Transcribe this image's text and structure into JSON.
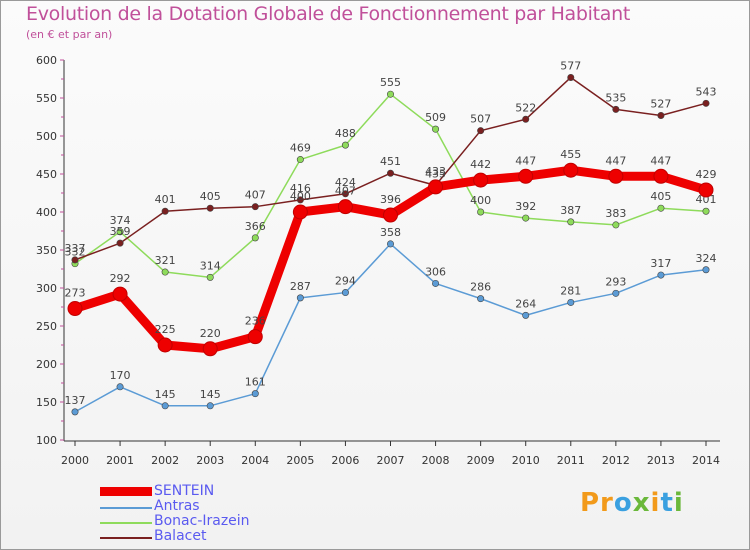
{
  "header": {
    "title": "Evolution de la Dotation Globale de Fonctionnement par Habitant",
    "subtitle": "(en € et par an)"
  },
  "logo": {
    "text": "Proxiti",
    "colors": [
      "#f29a1a",
      "#3aa0e0",
      "#6ab83a"
    ]
  },
  "chart_data": {
    "type": "line",
    "title": "Evolution de la Dotation Globale de Fonctionnement par Habitant",
    "subtitle": "(en € et par an)",
    "xlabel": "",
    "ylabel": "",
    "x": [
      "2000",
      "2001",
      "2002",
      "2003",
      "2004",
      "2005",
      "2006",
      "2007",
      "2008",
      "2009",
      "2010",
      "2011",
      "2012",
      "2013",
      "2014"
    ],
    "ylim": [
      100,
      600
    ],
    "yticks": [
      100,
      150,
      200,
      250,
      300,
      350,
      400,
      450,
      500,
      550,
      600
    ],
    "grid": false,
    "legend_position": "bottom-left",
    "series": [
      {
        "name": "SENTEIN",
        "color": "#ee0000",
        "width": 9,
        "values": [
          273,
          292,
          225,
          220,
          236,
          400,
          407,
          396,
          433,
          442,
          447,
          455,
          447,
          447,
          429
        ]
      },
      {
        "name": "Antras",
        "color": "#5b9bd5",
        "width": 1.5,
        "values": [
          137,
          170,
          145,
          145,
          161,
          287,
          294,
          358,
          306,
          286,
          264,
          281,
          293,
          317,
          324
        ]
      },
      {
        "name": "Bonac-Irazein",
        "color": "#8edb5b",
        "width": 1.5,
        "values": [
          332,
          374,
          321,
          314,
          366,
          469,
          488,
          555,
          509,
          400,
          392,
          387,
          383,
          405,
          401
        ]
      },
      {
        "name": "Balacet",
        "color": "#7a2020",
        "width": 1.5,
        "values": [
          337,
          359,
          401,
          405,
          407,
          416,
          424,
          451,
          435,
          507,
          522,
          577,
          535,
          527,
          543
        ]
      }
    ]
  }
}
